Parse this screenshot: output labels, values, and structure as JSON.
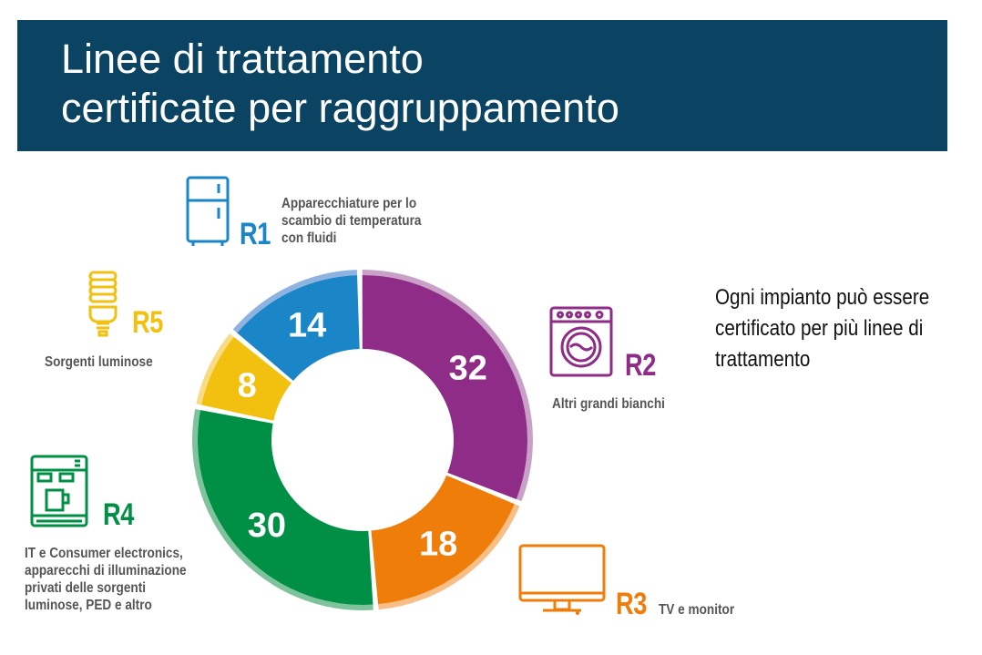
{
  "header": {
    "title_lines": [
      "Linee di trattamento",
      "certificate per raggruppamento"
    ]
  },
  "note_lines": [
    "Ogni impianto può essere",
    "certificato per più linee di",
    "trattamento"
  ],
  "chart_data": {
    "type": "pie",
    "variant": "donut",
    "title": "Linee di trattamento certificate per raggruppamento",
    "categories": [
      "R1",
      "R2",
      "R3",
      "R4",
      "R5"
    ],
    "values": [
      14,
      32,
      18,
      30,
      8
    ],
    "slices": [
      {
        "code": "R1",
        "value": 14,
        "description_lines": [
          "Apparecchiature per lo",
          "scambio di temperatura",
          "con fluidi"
        ],
        "color": "#1a86c8",
        "rim": "#8fb3e0",
        "icon": "fridge-icon"
      },
      {
        "code": "R2",
        "value": 32,
        "description_lines": [
          "Altri grandi bianchi"
        ],
        "color": "#8e2c87",
        "rim": "#c9a0c8",
        "icon": "washing-machine-icon"
      },
      {
        "code": "R3",
        "value": 18,
        "description_lines": [
          "TV e monitor"
        ],
        "color": "#ef7d0a",
        "rim": "#f8be85",
        "icon": "monitor-icon"
      },
      {
        "code": "R4",
        "value": 30,
        "description_lines": [
          "IT e Consumer electronics,",
          "apparecchi di illuminazione",
          "privati delle sorgenti",
          "luminose, PED e altro"
        ],
        "color": "#009045",
        "rim": "#7fc39d",
        "icon": "coffee-machine-icon"
      },
      {
        "code": "R5",
        "value": 8,
        "description_lines": [
          "Sorgenti luminose"
        ],
        "color": "#f2c00f",
        "rim": "#f8dc85",
        "icon": "lightbulb-icon"
      }
    ]
  }
}
